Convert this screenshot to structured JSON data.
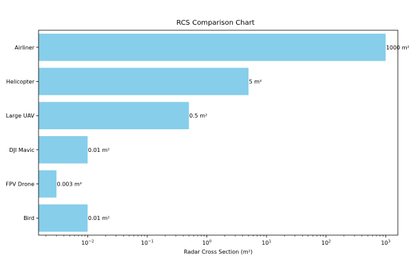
{
  "chart_data": {
    "type": "bar",
    "orientation": "horizontal",
    "title": "RCS Comparison Chart",
    "xlabel": "Radar Cross Section (m²)",
    "ylabel": "",
    "xscale": "log",
    "xlim": [
      0.0015,
      1600
    ],
    "x_ticks": [
      {
        "base": "10",
        "exp": "−2",
        "value": 0.01
      },
      {
        "base": "10",
        "exp": "−1",
        "value": 0.1
      },
      {
        "base": "10",
        "exp": "0",
        "value": 1
      },
      {
        "base": "10",
        "exp": "1",
        "value": 10
      },
      {
        "base": "10",
        "exp": "2",
        "value": 100
      },
      {
        "base": "10",
        "exp": "3",
        "value": 1000
      }
    ],
    "categories": [
      "Airliner",
      "Helicopter",
      "Large UAV",
      "DJI Mavic",
      "FPV Drone",
      "Bird"
    ],
    "values": [
      1000,
      5,
      0.5,
      0.01,
      0.003,
      0.01
    ],
    "data_labels": [
      "1000 m²",
      "5 m²",
      "0.5 m²",
      "0.01 m²",
      "0.003 m²",
      "0.01 m²"
    ],
    "bar_color": "#87ceeb",
    "grid": false,
    "legend": "none"
  }
}
